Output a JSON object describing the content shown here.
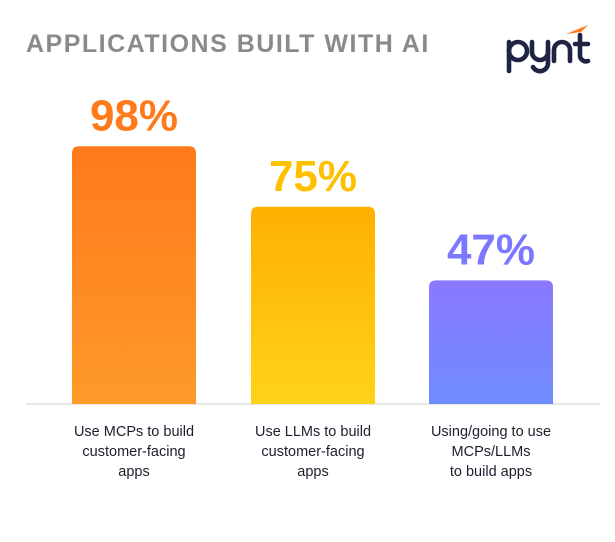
{
  "title": "APPLICATIONS BUILT WITH AI",
  "logo": {
    "text": "pynt",
    "icon": "pynt-logo",
    "color": "#1f2344",
    "accent": "#ff7a1a"
  },
  "chart_data": {
    "type": "bar",
    "title": "APPLICATIONS BUILT WITH AI",
    "categories": [
      "Use MCPs to build customer-facing apps",
      "Use LLMs to build customer-facing apps",
      "Using/going to use MCPs/LLMs to build apps"
    ],
    "category_lines": [
      [
        "Use MCPs to build",
        "customer-facing",
        "apps"
      ],
      [
        "Use LLMs to build",
        "customer-facing",
        "apps"
      ],
      [
        "Using/going to use",
        "MCPs/LLMs",
        "to build apps"
      ]
    ],
    "values": [
      98,
      75,
      47
    ],
    "value_labels": [
      "98%",
      "75%",
      "47%"
    ],
    "ylim": [
      0,
      100
    ],
    "grid": false,
    "colors": [
      {
        "top": "#ff7a1a",
        "bottom": "#ff9a2a",
        "label": "#ff7a1a"
      },
      {
        "top": "#ffb000",
        "bottom": "#ffd21a",
        "label": "#ffc000"
      },
      {
        "top": "#8a78ff",
        "bottom": "#6f8cff",
        "label": "#7b78ff"
      }
    ],
    "baseline_color": "#d6d6d6"
  }
}
